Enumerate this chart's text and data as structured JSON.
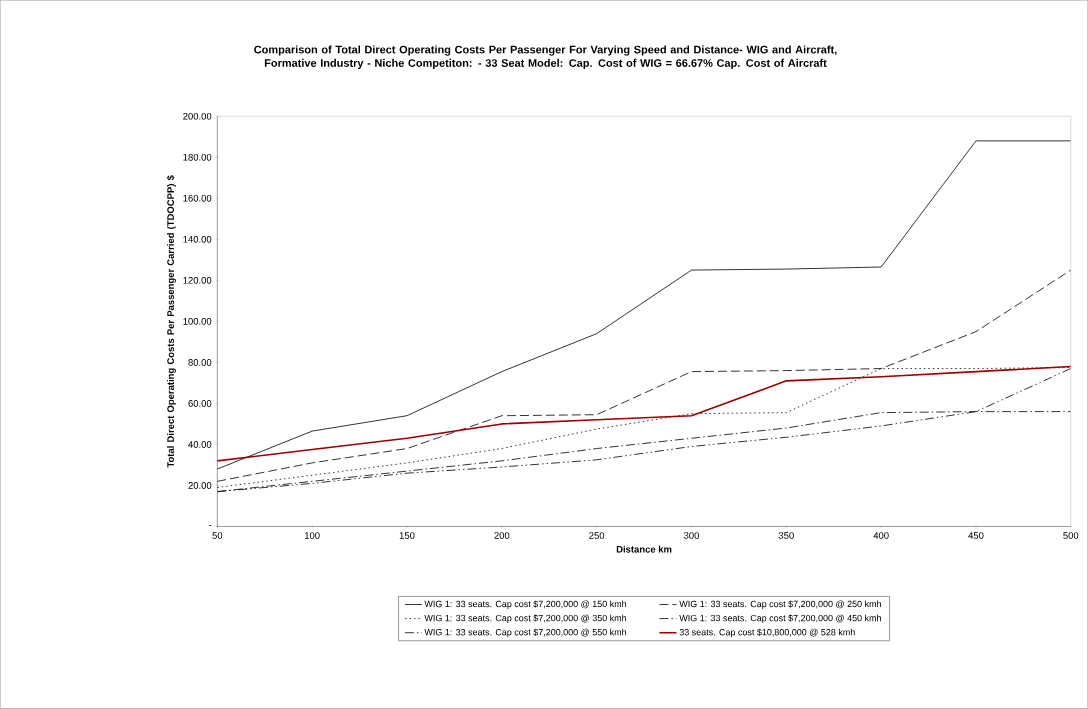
{
  "chart_data": {
    "type": "line",
    "title": "Comparison of Total Direct Operating Costs Per Passenger For Varying Speed and Distance- WIG and Aircraft, Formative Industry - Niche Competiton: - 33 Seat Model: Cap. Cost of WIG = 66.67% Cap. Cost of Aircraft",
    "xlabel": "Distance km",
    "ylabel": "Total Direct Operating Costs Per Passenger Carried (TDOCPP) $",
    "x": [
      50,
      100,
      150,
      200,
      250,
      300,
      350,
      400,
      450,
      500
    ],
    "xlim": [
      50,
      500
    ],
    "xticks": [
      50,
      100,
      150,
      200,
      250,
      300,
      350,
      400,
      450,
      500
    ],
    "ylim": [
      0,
      200
    ],
    "yticks": [
      {
        "value": 0,
        "label": "-"
      },
      {
        "value": 20,
        "label": "20.00"
      },
      {
        "value": 40,
        "label": "40.00"
      },
      {
        "value": 60,
        "label": "60.00"
      },
      {
        "value": 80,
        "label": "80.00"
      },
      {
        "value": 100,
        "label": "100.00"
      },
      {
        "value": 120,
        "label": "120.00"
      },
      {
        "value": 140,
        "label": "140.00"
      },
      {
        "value": 160,
        "label": "160.00"
      },
      {
        "value": 180,
        "label": "180.00"
      },
      {
        "value": 200,
        "label": "200.00"
      }
    ],
    "legend": "bottom",
    "series": [
      {
        "name": "WIG 1: 33 seats. Cap cost $7,200,000 @ 150 kmh",
        "color": "#000000",
        "line_style": "solid",
        "values": [
          28,
          46.5,
          54,
          75.5,
          94,
          125,
          125.5,
          126.5,
          188,
          188
        ]
      },
      {
        "name": "WIG 1: 33 seats. Cap cost $7,200,000 @ 250 kmh",
        "color": "#000000",
        "line_style": "dashed",
        "values": [
          22,
          31,
          38,
          54,
          54.5,
          75.5,
          76,
          77,
          95,
          125
        ]
      },
      {
        "name": "WIG 1: 33 seats. Cap cost $7,200,000 @ 350 kmh",
        "color": "#000000",
        "line_style": "dotted",
        "values": [
          19,
          25,
          31,
          38,
          47.5,
          55,
          55.5,
          77,
          77,
          77.5
        ]
      },
      {
        "name": "WIG 1: 33 seats. Cap cost $7,200,000 @ 450 kmh",
        "color": "#000000",
        "line_style": "dashdot",
        "values": [
          17,
          22,
          27,
          32,
          38,
          43,
          48,
          55.5,
          56,
          56
        ]
      },
      {
        "name": "WIG 1: 33 seats. Cap cost $7,200,000 @ 550 kmh",
        "color": "#000000",
        "line_style": "dashdotdot",
        "values": [
          17,
          21,
          26,
          29,
          32.5,
          39,
          43.5,
          49,
          56,
          77
        ]
      },
      {
        "name": "33 seats. Cap cost $10,800,000 @ 528 kmh",
        "color": "#990000",
        "line_style": "solid",
        "values": [
          32,
          37.5,
          43,
          50,
          52,
          54,
          71,
          73,
          75.5,
          78
        ]
      }
    ]
  }
}
